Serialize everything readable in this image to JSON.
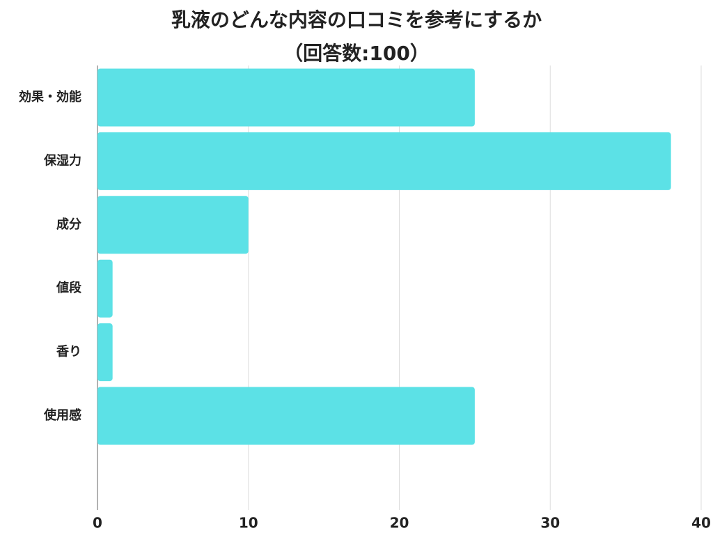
{
  "chart_data": {
    "type": "bar",
    "orientation": "horizontal",
    "title": "乳液のどんな内容の口コミを参考にするか",
    "subtitle": "（回答数:100）",
    "categories": [
      "効果・効能",
      "保湿力",
      "成分",
      "値段",
      "香り",
      "使用感"
    ],
    "values": [
      25,
      38,
      10,
      1,
      1,
      25
    ],
    "color": "#5ce1e6",
    "xlim": [
      0,
      40
    ],
    "xticks": [
      0,
      10,
      20,
      30,
      40
    ],
    "grid": true
  }
}
